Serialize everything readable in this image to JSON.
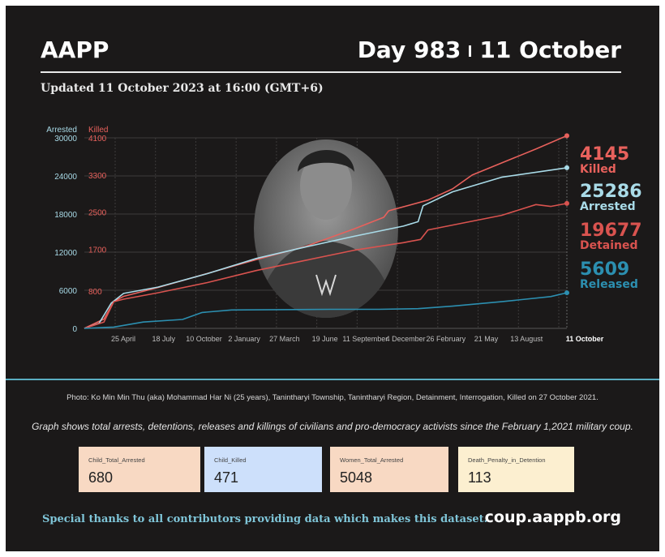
{
  "header": {
    "org": "AAPP",
    "day": "Day 983",
    "date": "11 October",
    "updated": "Updated 11 October 2023 at 16:00 (GMT+6)"
  },
  "colors": {
    "killed": "#e8615c",
    "arrested": "#a9dbe8",
    "detained": "#d9534f",
    "released": "#2c8fb0"
  },
  "chart_data": {
    "type": "line",
    "axes": {
      "left": {
        "label": "Arrested",
        "ticks": [
          "30000",
          "24000",
          "18000",
          "12000",
          "6000",
          "0"
        ],
        "range": [
          0,
          30000
        ]
      },
      "right_inner": {
        "label": "Killed",
        "ticks": [
          "4100",
          "3300",
          "2500",
          "1700",
          "800"
        ],
        "range": [
          0,
          4100
        ]
      }
    },
    "x_ticks": [
      "25 April",
      "18 July",
      "10 October",
      "2 January",
      "27 March",
      "19 June",
      "11 September",
      "4 December",
      "26 February",
      "21 May",
      "13 August",
      "11 October"
    ],
    "x_range": [
      0,
      983
    ],
    "series": [
      {
        "name": "Killed",
        "axis": "right_inner",
        "final": "4145",
        "points": [
          [
            0,
            0
          ],
          [
            40,
            200
          ],
          [
            60,
            580
          ],
          [
            80,
            690
          ],
          [
            150,
            880
          ],
          [
            250,
            1180
          ],
          [
            350,
            1480
          ],
          [
            450,
            1760
          ],
          [
            550,
            2140
          ],
          [
            610,
            2390
          ],
          [
            620,
            2530
          ],
          [
            700,
            2760
          ],
          [
            750,
            3000
          ],
          [
            790,
            3300
          ],
          [
            850,
            3560
          ],
          [
            920,
            3860
          ],
          [
            983,
            4145
          ]
        ]
      },
      {
        "name": "Arrested",
        "axis": "left",
        "final": "25286",
        "points": [
          [
            0,
            0
          ],
          [
            30,
            800
          ],
          [
            55,
            4000
          ],
          [
            80,
            5500
          ],
          [
            150,
            6500
          ],
          [
            250,
            8600
          ],
          [
            350,
            11000
          ],
          [
            450,
            12800
          ],
          [
            550,
            14500
          ],
          [
            650,
            16100
          ],
          [
            680,
            16800
          ],
          [
            690,
            19300
          ],
          [
            750,
            21500
          ],
          [
            850,
            23800
          ],
          [
            983,
            25286
          ]
        ]
      },
      {
        "name": "Detained",
        "axis": "left",
        "final": "19677",
        "points": [
          [
            0,
            0
          ],
          [
            40,
            1000
          ],
          [
            60,
            4200
          ],
          [
            80,
            4600
          ],
          [
            150,
            5600
          ],
          [
            250,
            7200
          ],
          [
            350,
            9100
          ],
          [
            450,
            10700
          ],
          [
            550,
            12300
          ],
          [
            650,
            13500
          ],
          [
            685,
            14000
          ],
          [
            700,
            15500
          ],
          [
            850,
            17800
          ],
          [
            920,
            19500
          ],
          [
            950,
            19200
          ],
          [
            983,
            19677
          ]
        ]
      },
      {
        "name": "Released",
        "axis": "left",
        "final": "5609",
        "points": [
          [
            0,
            0
          ],
          [
            60,
            200
          ],
          [
            120,
            1000
          ],
          [
            200,
            1400
          ],
          [
            240,
            2500
          ],
          [
            300,
            2900
          ],
          [
            500,
            3000
          ],
          [
            600,
            3000
          ],
          [
            680,
            3100
          ],
          [
            750,
            3500
          ],
          [
            850,
            4200
          ],
          [
            950,
            5000
          ],
          [
            983,
            5609
          ]
        ]
      }
    ]
  },
  "captions": {
    "photo": "Photo: Ko Min Min Thu (aka) Mohammad Har Ni (25 years), Tanintharyi Township, Tanintharyi Region, Detainment, Interrogation, Killed on 27 October 2021.",
    "graph": "Graph shows total arrests, detentions, releases and killings of civilians and pro-democracy activists since the February 1,2021 military coup."
  },
  "stats": [
    {
      "label": "Child_Total_Arrested",
      "value": "680",
      "bg": "#f8d9c3"
    },
    {
      "label": "Child_Killed",
      "value": "471",
      "bg": "#cde0fb"
    },
    {
      "label": "Women_Total_Arrested",
      "value": "5048",
      "bg": "#f8d9c3"
    },
    {
      "label": "Death_Penalty_in_Detention",
      "value": "113",
      "bg": "#fcefd0"
    }
  ],
  "footer": {
    "thanks": "Special thanks to all contributors providing data which makes this dataset.",
    "site": "coup.aappb.org"
  }
}
